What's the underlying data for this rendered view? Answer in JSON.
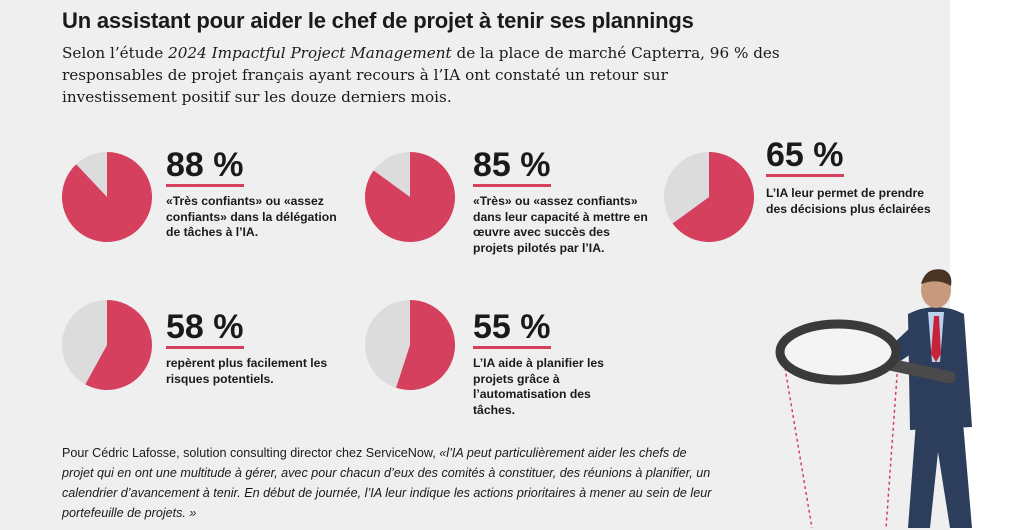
{
  "headline": "Un assistant pour aider le chef de projet à tenir ses plannings",
  "lead": {
    "before": "Selon l’étude ",
    "study": "2024 Impactful Project Management",
    "after": " de la place de marché Capterra, 96 % des responsables de projet français ayant recours à l’IA ont constaté un retour sur investissement positif sur les douze derniers mois."
  },
  "colors": {
    "accent": "#d5405f",
    "pie_rest": "#dcdcdc",
    "background": "#efefef"
  },
  "chart_data": {
    "type": "pie",
    "unit": "%",
    "stats": [
      {
        "value": 88,
        "label": "88 %",
        "description": "«Très confiants» ou «assez confiants» dans la délégation de tâches à l’IA."
      },
      {
        "value": 85,
        "label": "85 %",
        "description": "«Très» ou «assez confiants» dans leur capacité à mettre en œuvre avec succès des projets pilotés par l’IA."
      },
      {
        "value": 65,
        "label": "65 %",
        "description": "L’IA leur permet de prendre des décisions plus éclairées"
      },
      {
        "value": 58,
        "label": "58 %",
        "description": "repèrent plus facilement les risques potentiels."
      },
      {
        "value": 55,
        "label": "55 %",
        "description": "L’IA aide à planifier les projets grâce à l’automatisation des tâches."
      }
    ]
  },
  "footer": {
    "intro": "Pour Cédric Lafosse, solution consulting director chez ServiceNow, ",
    "quote": "«l’IA peut particulièrement aider les chefs de projet qui en ont une multitude à gérer, avec pour chacun d’eux des comités à constituer, des réunions à planifier, un calendrier d’avancement à tenir. En début de journée, l’IA leur indique les actions prioritaires à mener au sein de leur portefeuille de projets. »"
  },
  "illustration": {
    "icon": "businessman-with-magnifying-glass-icon"
  }
}
